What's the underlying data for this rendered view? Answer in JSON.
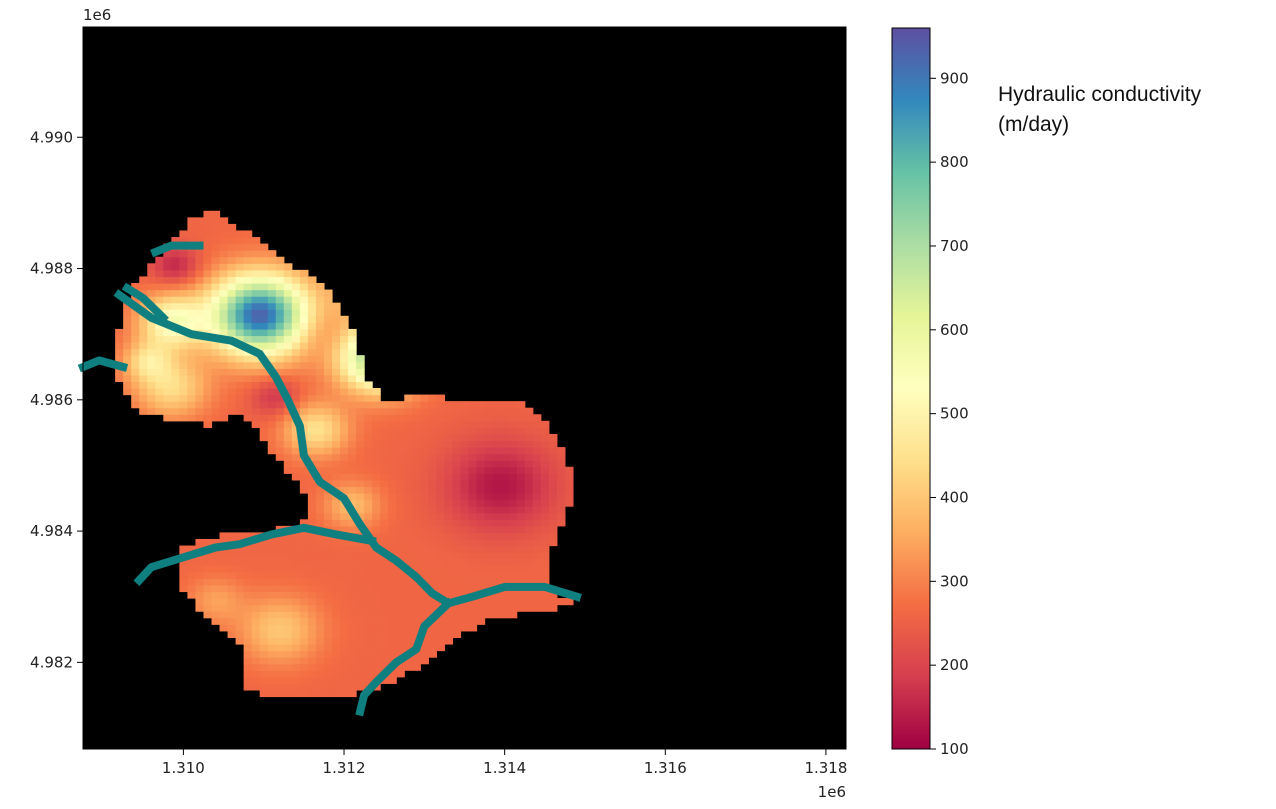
{
  "chart_data": {
    "type": "heatmap",
    "title": "",
    "xlabel": "",
    "ylabel": "",
    "x_offset_label": "1e6",
    "y_offset_label": "1e6",
    "xlim": [
      1.30875,
      1.31825
    ],
    "ylim": [
      4.98068,
      4.99168
    ],
    "x_ticks": [
      1.31,
      1.312,
      1.314,
      1.316,
      1.318
    ],
    "x_tick_labels": [
      "1.310",
      "1.312",
      "1.314",
      "1.316",
      "1.318"
    ],
    "y_ticks": [
      4.982,
      4.984,
      4.986,
      4.988,
      4.99
    ],
    "y_tick_labels": [
      "4.982",
      "4.984",
      "4.986",
      "4.988",
      "4.990"
    ],
    "background_color": "#000000",
    "colormap": "Spectral",
    "colorbar": {
      "range": [
        100,
        960
      ],
      "ticks": [
        100,
        200,
        300,
        400,
        500,
        600,
        700,
        800,
        900
      ],
      "tick_labels": [
        "100",
        "200",
        "300",
        "400",
        "500",
        "600",
        "700",
        "800",
        "900"
      ],
      "label_lines": [
        "Hydraulic conductivity",
        "(m/day)"
      ]
    },
    "stream_color": "#0f7f7f",
    "domain_outline": [
      [
        1.3099,
        4.98355
      ],
      [
        1.31,
        4.98305
      ],
      [
        1.3104,
        4.9826
      ],
      [
        1.31075,
        4.9822
      ],
      [
        1.3107,
        4.9817
      ],
      [
        1.31095,
        4.9815
      ],
      [
        1.312,
        4.9815
      ],
      [
        1.31255,
        4.98165
      ],
      [
        1.3131,
        4.98205
      ],
      [
        1.31345,
        4.9824
      ],
      [
        1.3138,
        4.98265
      ],
      [
        1.3144,
        4.9828
      ],
      [
        1.3149,
        4.98285
      ],
      [
        1.3145,
        4.9832
      ],
      [
        1.3146,
        4.9838
      ],
      [
        1.3148,
        4.9844
      ],
      [
        1.3148,
        4.985
      ],
      [
        1.31455,
        4.9856
      ],
      [
        1.31425,
        4.98595
      ],
      [
        1.3136,
        4.986
      ],
      [
        1.313,
        4.98605
      ],
      [
        1.3125,
        4.986
      ],
      [
        1.31225,
        4.9864
      ],
      [
        1.31215,
        4.987
      ],
      [
        1.312,
        4.9873
      ],
      [
        1.31175,
        4.98775
      ],
      [
        1.3113,
        4.9881
      ],
      [
        1.31085,
        4.9885
      ],
      [
        1.3104,
        4.98888
      ],
      [
        1.31015,
        4.9888
      ],
      [
        1.30985,
        4.9884
      ],
      [
        1.30955,
        4.988
      ],
      [
        1.30935,
        4.98765
      ],
      [
        1.3092,
        4.9871
      ],
      [
        1.30915,
        4.9864
      ],
      [
        1.30945,
        4.9858
      ],
      [
        1.30985,
        4.9857
      ],
      [
        1.31035,
        4.9856
      ],
      [
        1.3106,
        4.9858
      ],
      [
        1.3109,
        4.9856
      ],
      [
        1.31115,
        4.9851
      ],
      [
        1.31145,
        4.9847
      ],
      [
        1.3116,
        4.9842
      ],
      [
        1.31125,
        4.98405
      ],
      [
        1.31055,
        4.98395
      ],
      [
        1.30995,
        4.98375
      ]
    ],
    "stream_paths": [
      [
        [
          1.3092,
          4.9876
        ],
        [
          1.3096,
          4.98725
        ],
        [
          1.3101,
          4.987
        ],
        [
          1.3106,
          4.9869
        ],
        [
          1.31095,
          4.9867
        ],
        [
          1.31115,
          4.98635
        ],
        [
          1.3113,
          4.986
        ],
        [
          1.31145,
          4.9856
        ],
        [
          1.3115,
          4.98515
        ],
        [
          1.3117,
          4.98475
        ],
        [
          1.312,
          4.9845
        ],
        [
          1.3122,
          4.9841
        ],
        [
          1.3124,
          4.98375
        ],
        [
          1.31265,
          4.98355
        ],
        [
          1.3129,
          4.9833
        ],
        [
          1.3131,
          4.98305
        ],
        [
          1.3133,
          4.9829
        ],
        [
          1.3136,
          4.983
        ],
        [
          1.314,
          4.98315
        ],
        [
          1.3145,
          4.98315
        ],
        [
          1.3149,
          4.983
        ]
      ],
      [
        [
          1.3133,
          4.9829
        ],
        [
          1.313,
          4.98255
        ],
        [
          1.3129,
          4.9822
        ],
        [
          1.31265,
          4.982
        ],
        [
          1.3124,
          4.9817
        ],
        [
          1.31225,
          4.9815
        ],
        [
          1.3122,
          4.98125
        ]
      ],
      [
        [
          1.31235,
          4.98385
        ],
        [
          1.3119,
          4.98395
        ],
        [
          1.3115,
          4.98405
        ],
        [
          1.3111,
          4.98395
        ],
        [
          1.3107,
          4.9838
        ],
        [
          1.3104,
          4.98375
        ],
        [
          1.31,
          4.9836
        ],
        [
          1.3096,
          4.98345
        ],
        [
          1.30945,
          4.98325
        ]
      ],
      [
        [
          1.30975,
          4.98725
        ],
        [
          1.3095,
          4.98755
        ],
        [
          1.3093,
          4.9877
        ]
      ],
      [
        [
          1.3102,
          4.98835
        ],
        [
          1.30985,
          4.98835
        ],
        [
          1.30965,
          4.98825
        ]
      ],
      [
        [
          1.30925,
          4.9865
        ],
        [
          1.30895,
          4.9866
        ],
        [
          1.30875,
          4.9865
        ]
      ]
    ],
    "hotspots": [
      {
        "x": 1.31095,
        "y": 4.9873,
        "value": 930,
        "radius": 0.0006
      },
      {
        "x": 1.31245,
        "y": 4.98665,
        "value": 760,
        "radius": 0.0005
      },
      {
        "x": 1.30985,
        "y": 4.9872,
        "value": 540,
        "radius": 0.0004
      },
      {
        "x": 1.3124,
        "y": 4.9877,
        "value": 520,
        "radius": 0.00045
      },
      {
        "x": 1.30985,
        "y": 4.9862,
        "value": 440,
        "radius": 0.00045
      },
      {
        "x": 1.31165,
        "y": 4.98555,
        "value": 450,
        "radius": 0.0004
      },
      {
        "x": 1.30955,
        "y": 4.9866,
        "value": 420,
        "radius": 0.0003
      },
      {
        "x": 1.3112,
        "y": 4.9825,
        "value": 400,
        "radius": 0.0005
      },
      {
        "x": 1.3121,
        "y": 4.9844,
        "value": 380,
        "radius": 0.00035
      },
      {
        "x": 1.3104,
        "y": 4.98295,
        "value": 340,
        "radius": 0.00035
      },
      {
        "x": 1.3117,
        "y": 4.987,
        "value": 220,
        "radius": 0.00035
      },
      {
        "x": 1.31115,
        "y": 4.98605,
        "value": 170,
        "radius": 0.0003
      },
      {
        "x": 1.31395,
        "y": 4.9847,
        "value": 130,
        "radius": 0.0007
      },
      {
        "x": 1.3099,
        "y": 4.98805,
        "value": 150,
        "radius": 0.0003
      }
    ],
    "base_value": 260
  }
}
